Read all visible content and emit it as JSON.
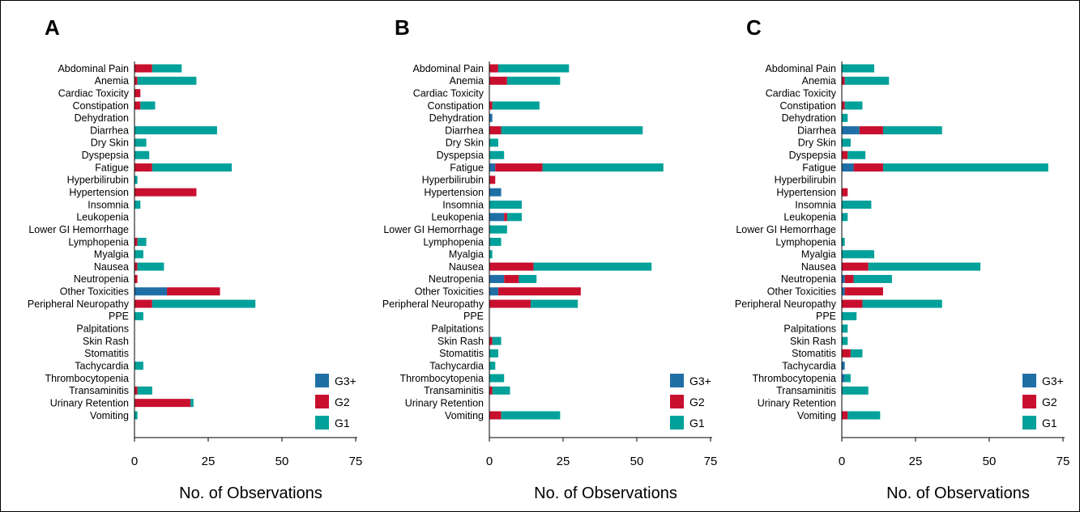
{
  "chart_data": [
    {
      "type": "bar",
      "orientation": "horizontal",
      "stacked": true,
      "panel_label": "A",
      "xlabel": "No. of Observations",
      "xlim": [
        0,
        75
      ],
      "xticks": [
        0,
        25,
        50,
        75
      ],
      "categories": [
        "Abdominal Pain",
        "Anemia",
        "Cardiac Toxicity",
        "Constipation",
        "Dehydration",
        "Diarrhea",
        "Dry Skin",
        "Dyspepsia",
        "Fatigue",
        "Hyperbilirubin",
        "Hypertension",
        "Insomnia",
        "Leukopenia",
        "Lower GI Hemorrhage",
        "Lymphopenia",
        "Myalgia",
        "Nausea",
        "Neutropenia",
        "Other Toxicities",
        "Peripheral Neuropathy",
        "PPE",
        "Palpitations",
        "Skin Rash",
        "Stomatitis",
        "Tachycardia",
        "Thrombocytopenia",
        "Transaminitis",
        "Urinary Retention",
        "Vomiting"
      ],
      "series": [
        {
          "name": "G3+",
          "values": [
            0,
            0,
            0,
            0,
            0,
            0,
            0,
            0,
            0,
            0,
            0,
            0,
            0,
            0,
            0,
            0,
            0,
            0,
            11,
            0,
            0,
            0,
            0,
            0,
            0,
            0,
            0,
            0,
            0
          ]
        },
        {
          "name": "G2",
          "values": [
            6,
            1,
            2,
            2,
            0,
            0,
            0,
            0,
            6,
            0,
            21,
            0,
            0,
            0,
            1,
            0,
            1,
            1,
            18,
            6,
            0,
            0,
            0,
            0,
            0,
            0,
            1,
            19,
            0
          ]
        },
        {
          "name": "G1",
          "values": [
            10,
            20,
            0,
            5,
            0,
            28,
            4,
            5,
            27,
            1,
            0,
            2,
            0,
            0,
            3,
            3,
            9,
            0,
            0,
            35,
            3,
            0,
            0,
            0,
            3,
            0,
            5,
            1,
            1
          ]
        }
      ],
      "legend": "bottom-right",
      "grid": false
    },
    {
      "type": "bar",
      "orientation": "horizontal",
      "stacked": true,
      "panel_label": "B",
      "xlabel": "No. of Observations",
      "xlim": [
        0,
        75
      ],
      "xticks": [
        0,
        25,
        50,
        75
      ],
      "categories": [
        "Abdominal Pain",
        "Anemia",
        "Cardiac Toxicity",
        "Constipation",
        "Dehydration",
        "Diarrhea",
        "Dry Skin",
        "Dyspepsia",
        "Fatigue",
        "Hyperbilirubin",
        "Hypertension",
        "Insomnia",
        "Leukopenia",
        "Lower GI Hemorrhage",
        "Lymphopenia",
        "Myalgia",
        "Nausea",
        "Neutropenia",
        "Other Toxicities",
        "Peripheral Neuropathy",
        "PPE",
        "Palpitations",
        "Skin Rash",
        "Stomatitis",
        "Tachycardia",
        "Thrombocytopenia",
        "Transaminitis",
        "Urinary Retention",
        "Vomiting"
      ],
      "series": [
        {
          "name": "G3+",
          "values": [
            0,
            0,
            0,
            0,
            1,
            0,
            0,
            0,
            2,
            0,
            4,
            0,
            5,
            0,
            0,
            0,
            0,
            5,
            3,
            0,
            0,
            0,
            0,
            0,
            0,
            0,
            0,
            0,
            0
          ]
        },
        {
          "name": "G2",
          "values": [
            3,
            6,
            0,
            1,
            0,
            4,
            0,
            0,
            16,
            2,
            0,
            0,
            1,
            0,
            0,
            0,
            15,
            5,
            28,
            14,
            0,
            0,
            1,
            0,
            0,
            0,
            1,
            0,
            4
          ]
        },
        {
          "name": "G1",
          "values": [
            24,
            18,
            0,
            16,
            0,
            48,
            3,
            5,
            41,
            0,
            0,
            11,
            5,
            6,
            4,
            1,
            40,
            6,
            0,
            16,
            0,
            0,
            3,
            3,
            2,
            5,
            6,
            0,
            20
          ]
        }
      ],
      "legend": "bottom-right",
      "grid": false
    },
    {
      "type": "bar",
      "orientation": "horizontal",
      "stacked": true,
      "panel_label": "C",
      "xlabel": "No. of Observations",
      "xlim": [
        0,
        75
      ],
      "xticks": [
        0,
        25,
        50,
        75
      ],
      "categories": [
        "Abdominal Pain",
        "Anemia",
        "Cardiac Toxicity",
        "Constipation",
        "Dehydration",
        "Diarrhea",
        "Dry Skin",
        "Dyspepsia",
        "Fatigue",
        "Hyperbilirubin",
        "Hypertension",
        "Insomnia",
        "Leukopenia",
        "Lower GI Hemorrhage",
        "Lymphopenia",
        "Myalgia",
        "Nausea",
        "Neutropenia",
        "Other Toxicities",
        "Peripheral Neuropathy",
        "PPE",
        "Palpitations",
        "Skin Rash",
        "Stomatitis",
        "Tachycardia",
        "Thrombocytopenia",
        "Transaminitis",
        "Urinary Retention",
        "Vomiting"
      ],
      "series": [
        {
          "name": "G3+",
          "values": [
            0,
            0,
            0,
            0,
            0,
            6,
            0,
            0,
            4,
            0,
            0,
            0,
            0,
            0,
            0,
            0,
            0,
            1,
            1,
            0,
            0,
            0,
            0,
            0,
            1,
            1,
            0,
            0,
            0
          ]
        },
        {
          "name": "G2",
          "values": [
            0,
            1,
            0,
            1,
            0,
            8,
            0,
            2,
            10,
            0,
            2,
            0,
            0,
            0,
            0,
            0,
            9,
            3,
            13,
            7,
            0,
            0,
            0,
            3,
            0,
            0,
            0,
            0,
            2
          ]
        },
        {
          "name": "G1",
          "values": [
            11,
            15,
            0,
            6,
            2,
            20,
            3,
            6,
            56,
            0,
            0,
            10,
            2,
            0,
            1,
            11,
            38,
            13,
            0,
            27,
            5,
            2,
            2,
            4,
            0,
            2,
            9,
            0,
            11
          ]
        }
      ],
      "legend": "bottom-right",
      "grid": false
    }
  ],
  "colors": {
    "G3+": "#1f6fa6",
    "G2": "#c8102e",
    "G1": "#00a19a",
    "axis": "#000000",
    "frame": "#000000"
  }
}
